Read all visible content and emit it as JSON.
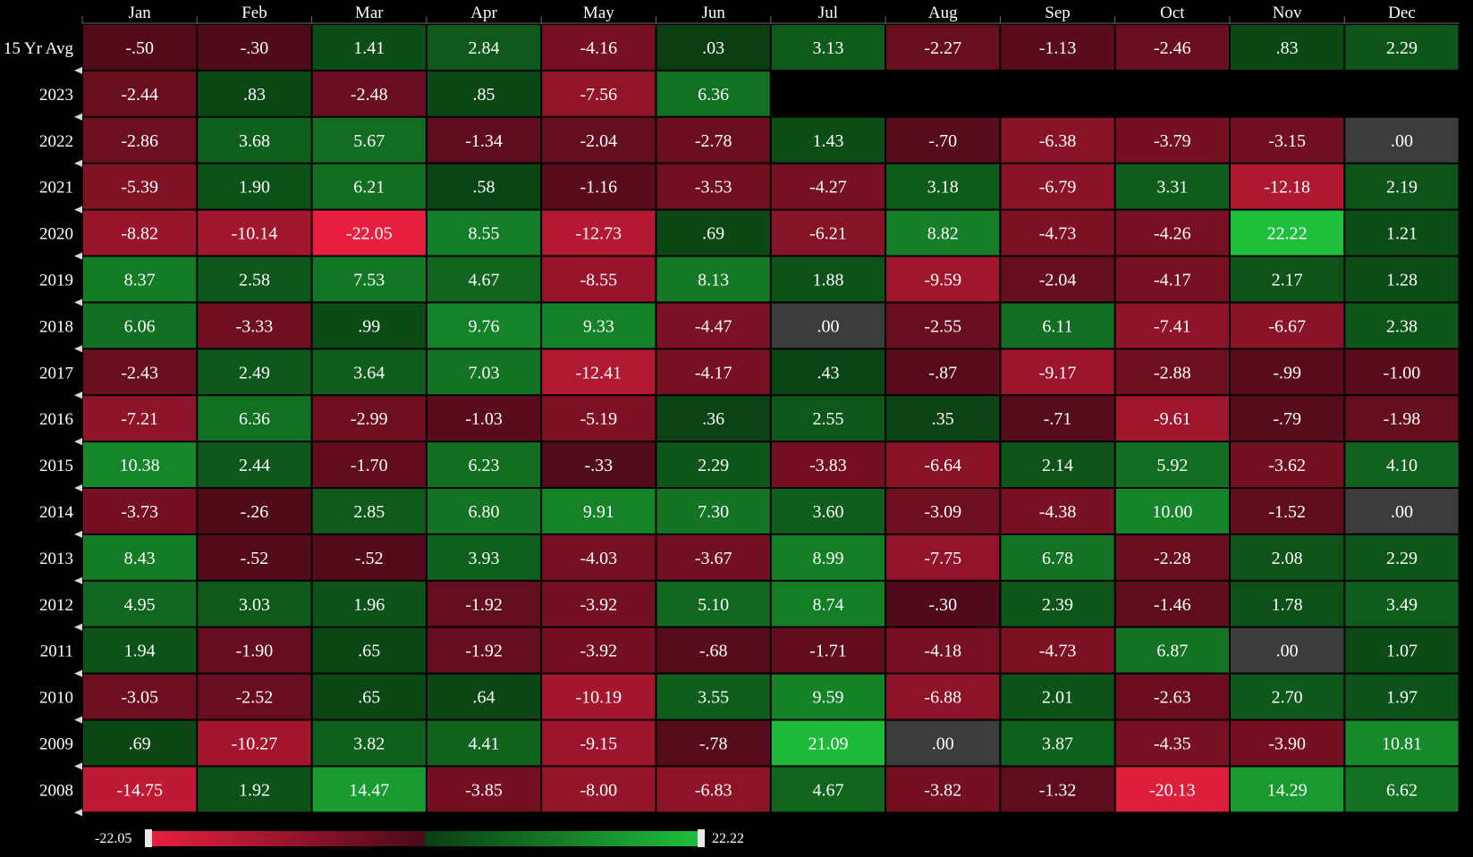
{
  "chart_data": {
    "type": "heatmap",
    "columns": [
      "Jan",
      "Feb",
      "Mar",
      "Apr",
      "May",
      "Jun",
      "Jul",
      "Aug",
      "Sep",
      "Oct",
      "Nov",
      "Dec"
    ],
    "rows": [
      {
        "label": "15 Yr Avg",
        "values": [
          -0.5,
          -0.3,
          1.41,
          2.84,
          -4.16,
          0.03,
          3.13,
          -2.27,
          -1.13,
          -2.46,
          0.83,
          2.29
        ],
        "display": [
          "-.50",
          "-.30",
          "1.41",
          "2.84",
          "-4.16",
          ".03",
          "3.13",
          "-2.27",
          "-1.13",
          "-2.46",
          ".83",
          "2.29"
        ]
      },
      {
        "label": "2023",
        "values": [
          -2.44,
          0.83,
          -2.48,
          0.85,
          -7.56,
          6.36,
          null,
          null,
          null,
          null,
          null,
          null
        ],
        "display": [
          "-2.44",
          ".83",
          "-2.48",
          ".85",
          "-7.56",
          "6.36",
          "",
          "",
          "",
          "",
          "",
          ""
        ]
      },
      {
        "label": "2022",
        "values": [
          -2.86,
          3.68,
          5.67,
          -1.34,
          -2.04,
          -2.78,
          1.43,
          -0.7,
          -6.38,
          -3.79,
          -3.15,
          0.0
        ],
        "display": [
          "-2.86",
          "3.68",
          "5.67",
          "-1.34",
          "-2.04",
          "-2.78",
          "1.43",
          "-.70",
          "-6.38",
          "-3.79",
          "-3.15",
          ".00"
        ]
      },
      {
        "label": "2021",
        "values": [
          -5.39,
          1.9,
          6.21,
          0.58,
          -1.16,
          -3.53,
          -4.27,
          3.18,
          -6.79,
          3.31,
          -12.18,
          2.19
        ],
        "display": [
          "-5.39",
          "1.90",
          "6.21",
          ".58",
          "-1.16",
          "-3.53",
          "-4.27",
          "3.18",
          "-6.79",
          "3.31",
          "-12.18",
          "2.19"
        ]
      },
      {
        "label": "2020",
        "values": [
          -8.82,
          -10.14,
          -22.05,
          8.55,
          -12.73,
          0.69,
          -6.21,
          8.82,
          -4.73,
          -4.26,
          22.22,
          1.21
        ],
        "display": [
          "-8.82",
          "-10.14",
          "-22.05",
          "8.55",
          "-12.73",
          ".69",
          "-6.21",
          "8.82",
          "-4.73",
          "-4.26",
          "22.22",
          "1.21"
        ]
      },
      {
        "label": "2019",
        "values": [
          8.37,
          2.58,
          7.53,
          4.67,
          -8.55,
          8.13,
          1.88,
          -9.59,
          -2.04,
          -4.17,
          2.17,
          1.28
        ],
        "display": [
          "8.37",
          "2.58",
          "7.53",
          "4.67",
          "-8.55",
          "8.13",
          "1.88",
          "-9.59",
          "-2.04",
          "-4.17",
          "2.17",
          "1.28"
        ]
      },
      {
        "label": "2018",
        "values": [
          6.06,
          -3.33,
          0.99,
          9.76,
          9.33,
          -4.47,
          0.0,
          -2.55,
          6.11,
          -7.41,
          -6.67,
          2.38
        ],
        "display": [
          "6.06",
          "-3.33",
          ".99",
          "9.76",
          "9.33",
          "-4.47",
          ".00",
          "-2.55",
          "6.11",
          "-7.41",
          "-6.67",
          "2.38"
        ]
      },
      {
        "label": "2017",
        "values": [
          -2.43,
          2.49,
          3.64,
          7.03,
          -12.41,
          -4.17,
          0.43,
          -0.87,
          -9.17,
          -2.88,
          -0.99,
          -1.0
        ],
        "display": [
          "-2.43",
          "2.49",
          "3.64",
          "7.03",
          "-12.41",
          "-4.17",
          ".43",
          "-.87",
          "-9.17",
          "-2.88",
          "-.99",
          "-1.00"
        ]
      },
      {
        "label": "2016",
        "values": [
          -7.21,
          6.36,
          -2.99,
          -1.03,
          -5.19,
          0.36,
          2.55,
          0.35,
          -0.71,
          -9.61,
          -0.79,
          -1.98
        ],
        "display": [
          "-7.21",
          "6.36",
          "-2.99",
          "-1.03",
          "-5.19",
          ".36",
          "2.55",
          ".35",
          "-.71",
          "-9.61",
          "-.79",
          "-1.98"
        ]
      },
      {
        "label": "2015",
        "values": [
          10.38,
          2.44,
          -1.7,
          6.23,
          -0.33,
          2.29,
          -3.83,
          -6.64,
          2.14,
          5.92,
          -3.62,
          4.1
        ],
        "display": [
          "10.38",
          "2.44",
          "-1.70",
          "6.23",
          "-.33",
          "2.29",
          "-3.83",
          "-6.64",
          "2.14",
          "5.92",
          "-3.62",
          "4.10"
        ]
      },
      {
        "label": "2014",
        "values": [
          -3.73,
          -0.26,
          2.85,
          6.8,
          9.91,
          7.3,
          3.6,
          -3.09,
          -4.38,
          10.0,
          -1.52,
          0.0
        ],
        "display": [
          "-3.73",
          "-.26",
          "2.85",
          "6.80",
          "9.91",
          "7.30",
          "3.60",
          "-3.09",
          "-4.38",
          "10.00",
          "-1.52",
          ".00"
        ]
      },
      {
        "label": "2013",
        "values": [
          8.43,
          -0.52,
          -0.52,
          3.93,
          -4.03,
          -3.67,
          8.99,
          -7.75,
          6.78,
          -2.28,
          2.08,
          2.29
        ],
        "display": [
          "8.43",
          "-.52",
          "-.52",
          "3.93",
          "-4.03",
          "-3.67",
          "8.99",
          "-7.75",
          "6.78",
          "-2.28",
          "2.08",
          "2.29"
        ]
      },
      {
        "label": "2012",
        "values": [
          4.95,
          3.03,
          1.96,
          -1.92,
          -3.92,
          5.1,
          8.74,
          -0.3,
          2.39,
          -1.46,
          1.78,
          3.49
        ],
        "display": [
          "4.95",
          "3.03",
          "1.96",
          "-1.92",
          "-3.92",
          "5.10",
          "8.74",
          "-.30",
          "2.39",
          "-1.46",
          "1.78",
          "3.49"
        ]
      },
      {
        "label": "2011",
        "values": [
          1.94,
          -1.9,
          0.65,
          -1.92,
          -3.92,
          -0.68,
          -1.71,
          -4.18,
          -4.73,
          6.87,
          0.0,
          1.07
        ],
        "display": [
          "1.94",
          "-1.90",
          ".65",
          "-1.92",
          "-3.92",
          "-.68",
          "-1.71",
          "-4.18",
          "-4.73",
          "6.87",
          ".00",
          "1.07"
        ]
      },
      {
        "label": "2010",
        "values": [
          -3.05,
          -2.52,
          0.65,
          0.64,
          -10.19,
          3.55,
          9.59,
          -6.88,
          2.01,
          -2.63,
          2.7,
          1.97
        ],
        "display": [
          "-3.05",
          "-2.52",
          ".65",
          ".64",
          "-10.19",
          "3.55",
          "9.59",
          "-6.88",
          "2.01",
          "-2.63",
          "2.70",
          "1.97"
        ]
      },
      {
        "label": "2009",
        "values": [
          0.69,
          -10.27,
          3.82,
          4.41,
          -9.15,
          -0.78,
          21.09,
          0.0,
          3.87,
          -4.35,
          -3.9,
          10.81
        ],
        "display": [
          ".69",
          "-10.27",
          "3.82",
          "4.41",
          "-9.15",
          "-.78",
          "21.09",
          ".00",
          "3.87",
          "-4.35",
          "-3.90",
          "10.81"
        ]
      },
      {
        "label": "2008",
        "values": [
          -14.75,
          1.92,
          14.47,
          -3.85,
          -8.0,
          -6.83,
          4.67,
          -3.82,
          -1.32,
          -20.13,
          14.29,
          6.62
        ],
        "display": [
          "-14.75",
          "1.92",
          "14.47",
          "-3.85",
          "-8.00",
          "-6.83",
          "4.67",
          "-3.82",
          "-1.32",
          "-20.13",
          "14.29",
          "6.62"
        ]
      }
    ],
    "scale": {
      "min": -22.05,
      "max": 22.22,
      "min_label": "-22.05",
      "max_label": "22.22"
    },
    "colors": {
      "negative_strong": "#e8203f",
      "negative_weak": "#4a0a18",
      "positive_weak": "#0a3d12",
      "positive_strong": "#1fbf3c",
      "zero": "#3c3c3c",
      "background": "#000000"
    }
  }
}
